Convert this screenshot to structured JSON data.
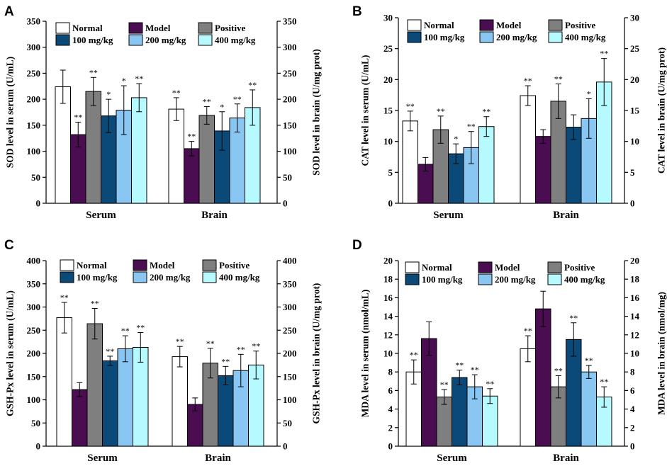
{
  "colors": {
    "Normal": "#ffffff",
    "Model": "#4a0d52",
    "Positive": "#7f7f7f",
    "100 mg/kg": "#0b4a78",
    "200 mg/kg": "#89c6f2",
    "400 mg/kg": "#b6faff"
  },
  "chart_data": [
    {
      "type": "bar",
      "panel": "A",
      "categories": [
        "Serum",
        "Brain"
      ],
      "legend": [
        "Normal",
        "Model",
        "Positive",
        "100 mg/kg",
        "200 mg/kg",
        "400 mg/kg"
      ],
      "ylabel": "SOD level in serum (U/mL)",
      "y2label": "SOD level in brain (U/mg prot)",
      "ylim": [
        0,
        350
      ],
      "yticks": [
        0,
        50,
        100,
        150,
        200,
        250,
        300,
        350
      ],
      "series": [
        {
          "name": "Normal",
          "values": [
            224,
            181
          ],
          "errors": [
            32,
            22
          ],
          "sig": [
            "",
            "**"
          ]
        },
        {
          "name": "Model",
          "values": [
            132,
            105
          ],
          "errors": [
            24,
            14
          ],
          "sig": [
            "**",
            "**"
          ]
        },
        {
          "name": "Positive",
          "values": [
            215,
            169
          ],
          "errors": [
            27,
            17
          ],
          "sig": [
            "**",
            "**"
          ]
        },
        {
          "name": "100 mg/kg",
          "values": [
            168,
            139
          ],
          "errors": [
            32,
            37
          ],
          "sig": [
            "*",
            "*"
          ]
        },
        {
          "name": "200 mg/kg",
          "values": [
            179,
            164
          ],
          "errors": [
            47,
            27
          ],
          "sig": [
            "*",
            "**"
          ]
        },
        {
          "name": "400 mg/kg",
          "values": [
            203,
            184
          ],
          "errors": [
            27,
            34
          ],
          "sig": [
            "**",
            "**"
          ]
        }
      ]
    },
    {
      "type": "bar",
      "panel": "B",
      "categories": [
        "Serum",
        "Brain"
      ],
      "legend": [
        "Normal",
        "Model",
        "Positive",
        "100 mg/kg",
        "200 mg/kg",
        "400 mg/kg"
      ],
      "ylabel": "CAT level in serum (U/mL)",
      "y2label": "CAT level in brain (U/mg prot)",
      "ylim": [
        0,
        30
      ],
      "yticks": [
        0,
        5,
        10,
        15,
        20,
        25,
        30
      ],
      "series": [
        {
          "name": "Normal",
          "values": [
            13.3,
            17.4
          ],
          "errors": [
            1.6,
            1.6
          ],
          "sig": [
            "**",
            "**"
          ]
        },
        {
          "name": "Model",
          "values": [
            6.3,
            10.8
          ],
          "errors": [
            1.1,
            1.1
          ],
          "sig": [
            "",
            ""
          ]
        },
        {
          "name": "Positive",
          "values": [
            11.9,
            16.5
          ],
          "errors": [
            2.2,
            2.8
          ],
          "sig": [
            "**",
            "**"
          ]
        },
        {
          "name": "100 mg/kg",
          "values": [
            8.0,
            12.3
          ],
          "errors": [
            1.6,
            2.0
          ],
          "sig": [
            "*",
            ""
          ]
        },
        {
          "name": "200 mg/kg",
          "values": [
            9.0,
            13.7
          ],
          "errors": [
            2.6,
            3.2
          ],
          "sig": [
            "**",
            "*"
          ]
        },
        {
          "name": "400 mg/kg",
          "values": [
            12.4,
            19.6
          ],
          "errors": [
            1.6,
            3.8
          ],
          "sig": [
            "**",
            "**"
          ]
        }
      ]
    },
    {
      "type": "bar",
      "panel": "C",
      "categories": [
        "Serum",
        "Brain"
      ],
      "legend": [
        "Normal",
        "Model",
        "Positive",
        "100 mg/kg",
        "200 mg/kg",
        "400 mg/kg"
      ],
      "ylabel": "GSH-Px level in serum (U/mL)",
      "y2label": "GSH-Px level in brain (U/mg prot)",
      "ylim": [
        0,
        400
      ],
      "yticks": [
        0,
        50,
        100,
        150,
        200,
        250,
        300,
        350,
        400
      ],
      "series": [
        {
          "name": "Normal",
          "values": [
            277,
            193
          ],
          "errors": [
            33,
            22
          ],
          "sig": [
            "**",
            "**"
          ]
        },
        {
          "name": "Model",
          "values": [
            122,
            90
          ],
          "errors": [
            15,
            14
          ],
          "sig": [
            "",
            ""
          ]
        },
        {
          "name": "Positive",
          "values": [
            264,
            179
          ],
          "errors": [
            33,
            32
          ],
          "sig": [
            "**",
            "**"
          ]
        },
        {
          "name": "100 mg/kg",
          "values": [
            184,
            152
          ],
          "errors": [
            10,
            20
          ],
          "sig": [
            "**",
            "**"
          ]
        },
        {
          "name": "200 mg/kg",
          "values": [
            210,
            163
          ],
          "errors": [
            28,
            35
          ],
          "sig": [
            "**",
            "**"
          ]
        },
        {
          "name": "400 mg/kg",
          "values": [
            213,
            175
          ],
          "errors": [
            32,
            30
          ],
          "sig": [
            "**",
            "**"
          ]
        }
      ]
    },
    {
      "type": "bar",
      "panel": "D",
      "categories": [
        "Serum",
        "Brain"
      ],
      "legend": [
        "Normal",
        "Model",
        "Positive",
        "100 mg/kg",
        "200 mg/kg",
        "400 mg/kg"
      ],
      "ylabel": "MDA level in serum (nmol/mL)",
      "y2label": "MDA level in brain (nmol/mg)",
      "ylim": [
        0,
        20
      ],
      "yticks": [
        0,
        2,
        4,
        6,
        8,
        10,
        12,
        14,
        16,
        18,
        20
      ],
      "series": [
        {
          "name": "Normal",
          "values": [
            8.0,
            10.5
          ],
          "errors": [
            1.3,
            1.4
          ],
          "sig": [
            "**",
            "**"
          ]
        },
        {
          "name": "Model",
          "values": [
            11.6,
            14.8
          ],
          "errors": [
            1.8,
            1.9
          ],
          "sig": [
            "",
            ""
          ]
        },
        {
          "name": "Positive",
          "values": [
            5.3,
            6.4
          ],
          "errors": [
            0.8,
            1.2
          ],
          "sig": [
            "**",
            "**"
          ]
        },
        {
          "name": "100 mg/kg",
          "values": [
            7.4,
            11.5
          ],
          "errors": [
            0.8,
            1.8
          ],
          "sig": [
            "**",
            "**"
          ]
        },
        {
          "name": "200 mg/kg",
          "values": [
            6.4,
            8.0
          ],
          "errors": [
            1.3,
            0.7
          ],
          "sig": [
            "**",
            "**"
          ]
        },
        {
          "name": "400 mg/kg",
          "values": [
            5.4,
            5.3
          ],
          "errors": [
            0.8,
            1.1
          ],
          "sig": [
            "**",
            "**"
          ]
        }
      ]
    }
  ]
}
